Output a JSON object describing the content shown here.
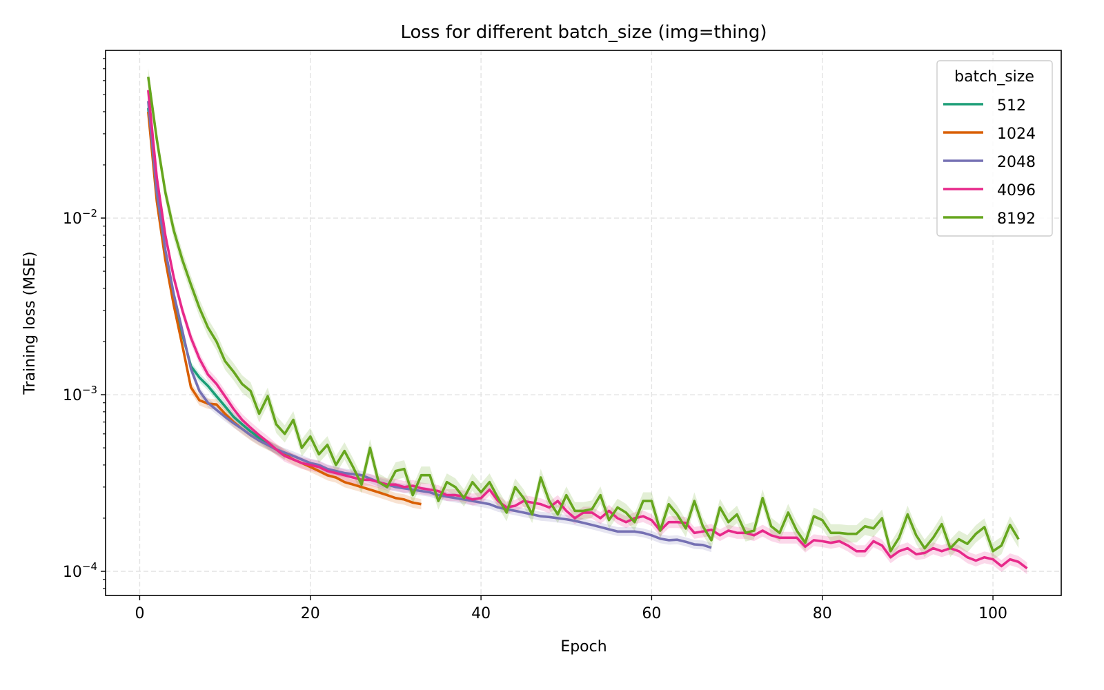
{
  "chart_data": {
    "type": "line",
    "title": "Loss for different batch_size (img=thing)",
    "xlabel": "Epoch",
    "ylabel": "Training loss (MSE)",
    "yscale": "log",
    "xlim": [
      -4,
      108
    ],
    "ylim": [
      7.3e-05,
      0.089
    ],
    "grid": true,
    "x_ticks": [
      0,
      20,
      40,
      60,
      80,
      100
    ],
    "x_tick_labels": [
      "0",
      "20",
      "40",
      "60",
      "80",
      "100"
    ],
    "y_ticks": [
      0.0001,
      0.001,
      0.01
    ],
    "y_tick_labels": [
      {
        "base": "10",
        "exp": "−4"
      },
      {
        "base": "10",
        "exp": "−3"
      },
      {
        "base": "10",
        "exp": "−2"
      }
    ],
    "legend": {
      "title": "batch_size",
      "position": "top-right"
    },
    "series": [
      {
        "name": "512",
        "color": "#1b9e77",
        "start_epoch": 1,
        "values": [
          0.042,
          0.013,
          0.0062,
          0.0035,
          0.0022,
          0.00145,
          0.00125,
          0.00112,
          0.00098,
          0.00086,
          0.00075,
          0.00068,
          0.00062,
          0.00057,
          0.00052,
          0.00049,
          0.00045
        ],
        "band": 0.06
      },
      {
        "name": "1024",
        "color": "#d95f02",
        "start_epoch": 1,
        "values": [
          0.04,
          0.0125,
          0.0058,
          0.0032,
          0.0019,
          0.0011,
          0.00093,
          0.00089,
          0.00088,
          0.00078,
          0.0007,
          0.00064,
          0.00059,
          0.00055,
          0.00052,
          0.00049,
          0.00046,
          0.00043,
          0.00041,
          0.00039,
          0.00037,
          0.00035,
          0.00034,
          0.00032,
          0.00031,
          0.0003,
          0.00029,
          0.00028,
          0.00027,
          0.00026,
          0.000255,
          0.000245,
          0.00024
        ],
        "band": 0.07
      },
      {
        "name": "2048",
        "color": "#7570b3",
        "start_epoch": 1,
        "values": [
          0.046,
          0.014,
          0.0066,
          0.0037,
          0.0023,
          0.0014,
          0.00105,
          0.0009,
          0.00082,
          0.00075,
          0.00069,
          0.00064,
          0.00059,
          0.00055,
          0.00052,
          0.00049,
          0.00047,
          0.00045,
          0.00043,
          0.00041,
          0.0004,
          0.00038,
          0.00037,
          0.00036,
          0.000355,
          0.00035,
          0.000335,
          0.00032,
          0.00031,
          0.0003,
          0.000295,
          0.00029,
          0.000285,
          0.00028,
          0.00027,
          0.000265,
          0.00026,
          0.000255,
          0.00025,
          0.000245,
          0.00024,
          0.00023,
          0.000225,
          0.00022,
          0.000215,
          0.00021,
          0.000205,
          0.000203,
          0.0002,
          0.000197,
          0.000193,
          0.000188,
          0.000183,
          0.000178,
          0.000173,
          0.000168,
          0.000168,
          0.000168,
          0.000165,
          0.00016,
          0.000153,
          0.00015,
          0.000151,
          0.000147,
          0.000142,
          0.000141,
          0.000136
        ],
        "band": 0.06
      },
      {
        "name": "4096",
        "color": "#e7298a",
        "start_epoch": 1,
        "values": [
          0.053,
          0.017,
          0.008,
          0.0046,
          0.003,
          0.0021,
          0.0016,
          0.0013,
          0.00115,
          0.00098,
          0.00083,
          0.00072,
          0.00065,
          0.00059,
          0.00054,
          0.00049,
          0.00045,
          0.00043,
          0.00041,
          0.0004,
          0.00039,
          0.00037,
          0.00036,
          0.00035,
          0.00034,
          0.00033,
          0.00033,
          0.00032,
          0.00031,
          0.00031,
          0.0003,
          0.000305,
          0.000295,
          0.00029,
          0.000285,
          0.00027,
          0.00027,
          0.000265,
          0.000255,
          0.00026,
          0.00029,
          0.00025,
          0.00023,
          0.000235,
          0.00025,
          0.000245,
          0.00024,
          0.00023,
          0.00025,
          0.00022,
          0.0002,
          0.000215,
          0.000215,
          0.0002,
          0.00022,
          0.0002,
          0.00019,
          0.0002,
          0.000205,
          0.000195,
          0.00017,
          0.00019,
          0.00019,
          0.000188,
          0.000165,
          0.000168,
          0.000172,
          0.00016,
          0.00017,
          0.000165,
          0.000165,
          0.00016,
          0.00017,
          0.00016,
          0.000155,
          0.000155,
          0.000155,
          0.000138,
          0.00015,
          0.000148,
          0.000145,
          0.000148,
          0.00014,
          0.00013,
          0.00013,
          0.000148,
          0.00014,
          0.00012,
          0.00013,
          0.000135,
          0.000125,
          0.000127,
          0.000135,
          0.00013,
          0.000135,
          0.00013,
          0.00012,
          0.000115,
          0.00012,
          0.000117,
          0.000107,
          0.000117,
          0.000113,
          0.000104
        ],
        "band": 0.08
      },
      {
        "name": "8192",
        "color": "#66a61e",
        "start_epoch": 1,
        "values": [
          0.063,
          0.028,
          0.014,
          0.0085,
          0.0058,
          0.0042,
          0.0031,
          0.0024,
          0.002,
          0.00155,
          0.00135,
          0.00115,
          0.00105,
          0.00078,
          0.00098,
          0.00068,
          0.0006,
          0.00072,
          0.0005,
          0.00058,
          0.00046,
          0.00052,
          0.0004,
          0.00048,
          0.00039,
          0.00031,
          0.0005,
          0.00032,
          0.0003,
          0.00037,
          0.00038,
          0.00027,
          0.00035,
          0.00035,
          0.00025,
          0.00032,
          0.0003,
          0.00026,
          0.00032,
          0.00028,
          0.00032,
          0.00026,
          0.000215,
          0.0003,
          0.00026,
          0.00021,
          0.00034,
          0.00025,
          0.00021,
          0.00027,
          0.00022,
          0.00022,
          0.000225,
          0.00027,
          0.000195,
          0.00023,
          0.000215,
          0.00019,
          0.00025,
          0.00025,
          0.00017,
          0.00024,
          0.00021,
          0.000175,
          0.00025,
          0.00018,
          0.00015,
          0.00023,
          0.00019,
          0.00021,
          0.000165,
          0.00017,
          0.00026,
          0.00018,
          0.000165,
          0.000215,
          0.00017,
          0.000145,
          0.000205,
          0.000195,
          0.000165,
          0.000165,
          0.000163,
          0.000163,
          0.00018,
          0.000175,
          0.0002,
          0.00013,
          0.000155,
          0.00021,
          0.00016,
          0.000135,
          0.000155,
          0.000185,
          0.000135,
          0.000152,
          0.000143,
          0.000163,
          0.000178,
          0.00013,
          0.00014,
          0.000183,
          0.000152
        ],
        "band": 0.12
      }
    ]
  }
}
